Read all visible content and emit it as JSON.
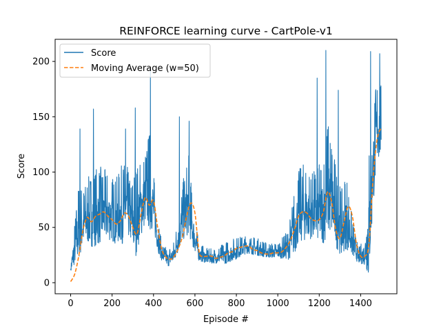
{
  "chart_data": {
    "type": "line",
    "title": "REINFORCE learning curve - CartPole-v1",
    "xlabel": "Episode #",
    "ylabel": "Score",
    "xlim": [
      -75,
      1575
    ],
    "ylim": [
      -10,
      220
    ],
    "xticks": [
      0,
      200,
      400,
      600,
      800,
      1000,
      1200,
      1400
    ],
    "yticks": [
      0,
      50,
      100,
      150,
      200
    ],
    "grid": false,
    "legend_position": "upper-left",
    "series": [
      {
        "name": "Score",
        "color": "#1f77b4",
        "style": "solid",
        "noise_seed": 7,
        "anchors": {
          "x": [
            0,
            20,
            40,
            60,
            80,
            100,
            130,
            160,
            190,
            220,
            250,
            270,
            290,
            310,
            330,
            360,
            380,
            400,
            420,
            440,
            470,
            500,
            540,
            570,
            590,
            620,
            660,
            700,
            750,
            800,
            850,
            900,
            950,
            1000,
            1050,
            1080,
            1100,
            1130,
            1160,
            1190,
            1220,
            1240,
            1260,
            1290,
            1310,
            1330,
            1360,
            1390,
            1420,
            1440,
            1460,
            1480,
            1499
          ],
          "base": [
            12,
            30,
            45,
            50,
            55,
            55,
            58,
            60,
            58,
            55,
            60,
            65,
            55,
            50,
            60,
            75,
            78,
            65,
            40,
            25,
            20,
            25,
            55,
            68,
            45,
            25,
            22,
            22,
            24,
            28,
            32,
            30,
            27,
            27,
            30,
            45,
            58,
            62,
            60,
            60,
            62,
            78,
            72,
            50,
            45,
            55,
            35,
            22,
            25,
            40,
            100,
            135,
            135
          ],
          "amp": [
            8,
            30,
            55,
            40,
            45,
            50,
            55,
            50,
            45,
            45,
            55,
            50,
            40,
            65,
            55,
            50,
            70,
            40,
            25,
            12,
            12,
            15,
            40,
            55,
            30,
            12,
            10,
            10,
            15,
            15,
            12,
            12,
            10,
            10,
            20,
            45,
            50,
            55,
            45,
            50,
            60,
            80,
            70,
            50,
            45,
            55,
            25,
            10,
            20,
            95,
            70,
            60,
            50
          ]
        },
        "spikes": [
          [
            45,
            139
          ],
          [
            110,
            157
          ],
          [
            265,
            139
          ],
          [
            312,
            158
          ],
          [
            385,
            193
          ],
          [
            525,
            150
          ],
          [
            572,
            146
          ],
          [
            1190,
            185
          ],
          [
            1232,
            210
          ],
          [
            1292,
            174
          ],
          [
            1448,
            209
          ],
          [
            1492,
            207
          ]
        ]
      },
      {
        "name": "Moving Average (w=50)",
        "color": "#ff7f0e",
        "style": "dashed",
        "x": [
          0,
          20,
          40,
          60,
          80,
          100,
          120,
          140,
          160,
          180,
          200,
          220,
          240,
          260,
          280,
          300,
          320,
          340,
          360,
          380,
          400,
          420,
          440,
          460,
          480,
          500,
          520,
          540,
          560,
          580,
          600,
          620,
          640,
          660,
          680,
          700,
          720,
          740,
          760,
          780,
          800,
          820,
          840,
          860,
          880,
          900,
          920,
          940,
          960,
          980,
          1000,
          1020,
          1040,
          1060,
          1080,
          1100,
          1120,
          1140,
          1160,
          1180,
          1200,
          1220,
          1240,
          1260,
          1280,
          1300,
          1320,
          1340,
          1360,
          1380,
          1400,
          1420,
          1440,
          1460,
          1480,
          1499
        ],
        "values": [
          1,
          8,
          25,
          48,
          59,
          55,
          60,
          62,
          64,
          60,
          57,
          53,
          56,
          63,
          60,
          50,
          44,
          62,
          77,
          70,
          74,
          50,
          30,
          23,
          21,
          24,
          31,
          42,
          60,
          72,
          63,
          28,
          24,
          24,
          24,
          22,
          23,
          24,
          27,
          28,
          31,
          32,
          33,
          33,
          30,
          29,
          27,
          26,
          26,
          27,
          27,
          28,
          32,
          38,
          48,
          60,
          64,
          63,
          58,
          56,
          57,
          64,
          82,
          73,
          48,
          40,
          55,
          69,
          60,
          35,
          24,
          24,
          35,
          95,
          130,
          140
        ]
      }
    ]
  }
}
